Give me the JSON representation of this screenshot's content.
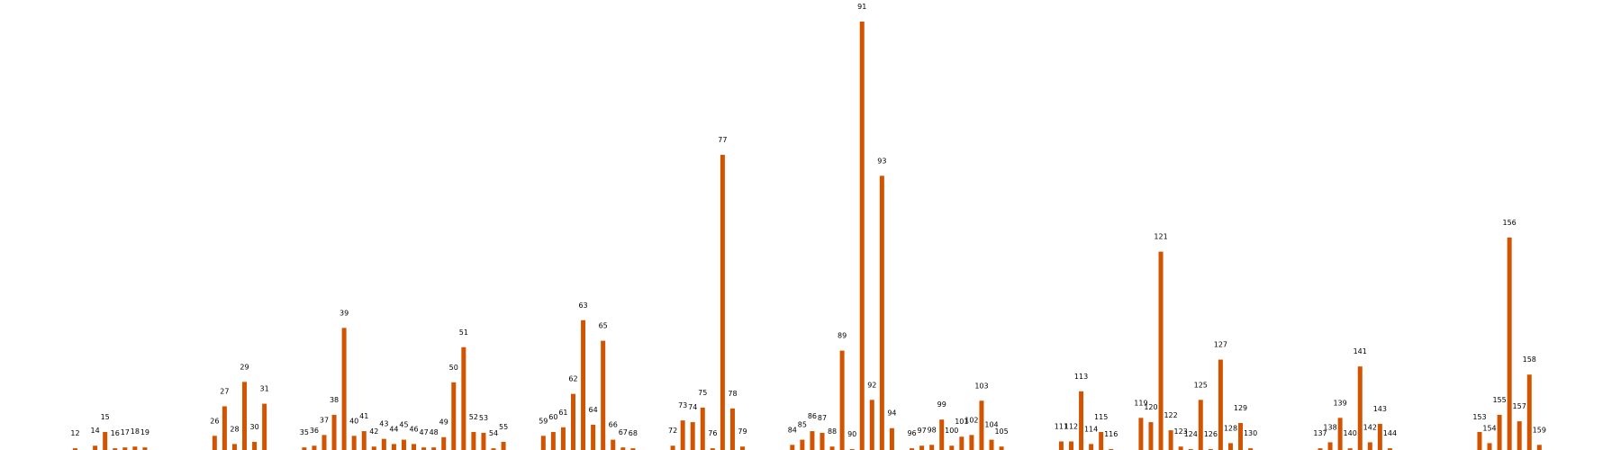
{
  "chart_data": {
    "type": "bar",
    "title": "",
    "xlabel": "",
    "ylabel": "",
    "color": "#d35400",
    "axes_visible": false,
    "grid": false,
    "ylim": [
      0,
      100
    ],
    "bars": [
      {
        "x": 12,
        "label": "12",
        "value": 0.4
      },
      {
        "x": 14,
        "label": "14",
        "value": 1.0
      },
      {
        "x": 15,
        "label": "15",
        "value": 4.2
      },
      {
        "x": 16,
        "label": "16",
        "value": 0.4
      },
      {
        "x": 17,
        "label": "17",
        "value": 0.6
      },
      {
        "x": 18,
        "label": "18",
        "value": 0.8
      },
      {
        "x": 19,
        "label": "19",
        "value": 0.6
      },
      {
        "x": 26,
        "label": "26",
        "value": 3.3
      },
      {
        "x": 27,
        "label": "27",
        "value": 10.2
      },
      {
        "x": 28,
        "label": "28",
        "value": 1.4
      },
      {
        "x": 29,
        "label": "29",
        "value": 15.9
      },
      {
        "x": 30,
        "label": "30",
        "value": 1.9
      },
      {
        "x": 31,
        "label": "31",
        "value": 10.8
      },
      {
        "x": 35,
        "label": "35",
        "value": 0.6
      },
      {
        "x": 36,
        "label": "36",
        "value": 1.0
      },
      {
        "x": 37,
        "label": "37",
        "value": 3.5
      },
      {
        "x": 38,
        "label": "38",
        "value": 8.2
      },
      {
        "x": 39,
        "label": "39",
        "value": 28.5
      },
      {
        "x": 40,
        "label": "40",
        "value": 3.3
      },
      {
        "x": 41,
        "label": "41",
        "value": 4.4
      },
      {
        "x": 42,
        "label": "42",
        "value": 0.8
      },
      {
        "x": 43,
        "label": "43",
        "value": 2.6
      },
      {
        "x": 44,
        "label": "44",
        "value": 1.4
      },
      {
        "x": 45,
        "label": "45",
        "value": 2.4
      },
      {
        "x": 46,
        "label": "46",
        "value": 1.4
      },
      {
        "x": 47,
        "label": "47",
        "value": 0.6
      },
      {
        "x": 48,
        "label": "48",
        "value": 0.6
      },
      {
        "x": 49,
        "label": "49",
        "value": 3.0
      },
      {
        "x": 50,
        "label": "50",
        "value": 15.8
      },
      {
        "x": 51,
        "label": "51",
        "value": 24.0
      },
      {
        "x": 52,
        "label": "52",
        "value": 4.2
      },
      {
        "x": 53,
        "label": "53",
        "value": 4.0
      },
      {
        "x": 54,
        "label": "54",
        "value": 0.4
      },
      {
        "x": 55,
        "label": "55",
        "value": 1.9
      },
      {
        "x": 59,
        "label": "59",
        "value": 3.3
      },
      {
        "x": 60,
        "label": "60",
        "value": 4.2
      },
      {
        "x": 61,
        "label": "61",
        "value": 5.3
      },
      {
        "x": 62,
        "label": "62",
        "value": 13.1
      },
      {
        "x": 63,
        "label": "63",
        "value": 30.3
      },
      {
        "x": 64,
        "label": "64",
        "value": 5.9
      },
      {
        "x": 65,
        "label": "65",
        "value": 25.5
      },
      {
        "x": 66,
        "label": "66",
        "value": 2.4
      },
      {
        "x": 67,
        "label": "67",
        "value": 0.6
      },
      {
        "x": 68,
        "label": "68",
        "value": 0.4
      },
      {
        "x": 72,
        "label": "72",
        "value": 1.0
      },
      {
        "x": 73,
        "label": "73",
        "value": 6.9
      },
      {
        "x": 74,
        "label": "74",
        "value": 6.5
      },
      {
        "x": 75,
        "label": "75",
        "value": 9.9
      },
      {
        "x": 76,
        "label": "76",
        "value": 0.4
      },
      {
        "x": 77,
        "label": "77",
        "value": 68.9
      },
      {
        "x": 78,
        "label": "78",
        "value": 9.7
      },
      {
        "x": 79,
        "label": "79",
        "value": 0.8
      },
      {
        "x": 84,
        "label": "84",
        "value": 1.2
      },
      {
        "x": 85,
        "label": "85",
        "value": 2.4
      },
      {
        "x": 86,
        "label": "86",
        "value": 4.4
      },
      {
        "x": 87,
        "label": "87",
        "value": 4.0
      },
      {
        "x": 88,
        "label": "88",
        "value": 0.8
      },
      {
        "x": 89,
        "label": "89",
        "value": 23.2
      },
      {
        "x": 90,
        "label": "90",
        "value": 0.2
      },
      {
        "x": 91,
        "label": "91",
        "value": 100
      },
      {
        "x": 92,
        "label": "92",
        "value": 11.7
      },
      {
        "x": 93,
        "label": "93",
        "value": 64.0
      },
      {
        "x": 94,
        "label": "94",
        "value": 5.1
      },
      {
        "x": 96,
        "label": "96",
        "value": 0.4
      },
      {
        "x": 97,
        "label": "97",
        "value": 1.0
      },
      {
        "x": 98,
        "label": "98",
        "value": 1.2
      },
      {
        "x": 99,
        "label": "99",
        "value": 7.1
      },
      {
        "x": 100,
        "label": "100",
        "value": 1.0
      },
      {
        "x": 101,
        "label": "101",
        "value": 3.1
      },
      {
        "x": 102,
        "label": "102",
        "value": 3.5
      },
      {
        "x": 103,
        "label": "103",
        "value": 11.5
      },
      {
        "x": 104,
        "label": "104",
        "value": 2.4
      },
      {
        "x": 105,
        "label": "105",
        "value": 0.8
      },
      {
        "x": 111,
        "label": "111",
        "value": 2.0
      },
      {
        "x": 112,
        "label": "112",
        "value": 2.0
      },
      {
        "x": 113,
        "label": "113",
        "value": 13.7
      },
      {
        "x": 114,
        "label": "114",
        "value": 1.4
      },
      {
        "x": 115,
        "label": "115",
        "value": 4.2
      },
      {
        "x": 116,
        "label": "116",
        "value": 0.2
      },
      {
        "x": 119,
        "label": "119",
        "value": 7.5
      },
      {
        "x": 120,
        "label": "120",
        "value": 6.5
      },
      {
        "x": 121,
        "label": "121",
        "value": 46.3
      },
      {
        "x": 122,
        "label": "122",
        "value": 4.6
      },
      {
        "x": 123,
        "label": "123",
        "value": 0.8
      },
      {
        "x": 124,
        "label": "124",
        "value": 0.2
      },
      {
        "x": 125,
        "label": "125",
        "value": 11.7
      },
      {
        "x": 126,
        "label": "126",
        "value": 0.2
      },
      {
        "x": 127,
        "label": "127",
        "value": 21.1
      },
      {
        "x": 128,
        "label": "128",
        "value": 1.6
      },
      {
        "x": 129,
        "label": "129",
        "value": 6.3
      },
      {
        "x": 130,
        "label": "130",
        "value": 0.4
      },
      {
        "x": 137,
        "label": "137",
        "value": 0.4
      },
      {
        "x": 138,
        "label": "138",
        "value": 1.8
      },
      {
        "x": 139,
        "label": "139",
        "value": 7.5
      },
      {
        "x": 140,
        "label": "140",
        "value": 0.4
      },
      {
        "x": 141,
        "label": "141",
        "value": 19.5
      },
      {
        "x": 142,
        "label": "142",
        "value": 1.8
      },
      {
        "x": 143,
        "label": "143",
        "value": 6.1
      },
      {
        "x": 144,
        "label": "144",
        "value": 0.4
      },
      {
        "x": 153,
        "label": "153",
        "value": 4.2
      },
      {
        "x": 154,
        "label": "154",
        "value": 1.6
      },
      {
        "x": 155,
        "label": "155",
        "value": 8.2
      },
      {
        "x": 156,
        "label": "156",
        "value": 49.6
      },
      {
        "x": 157,
        "label": "157",
        "value": 6.7
      },
      {
        "x": 158,
        "label": "158",
        "value": 17.6
      },
      {
        "x": 159,
        "label": "159",
        "value": 1.2
      }
    ]
  }
}
